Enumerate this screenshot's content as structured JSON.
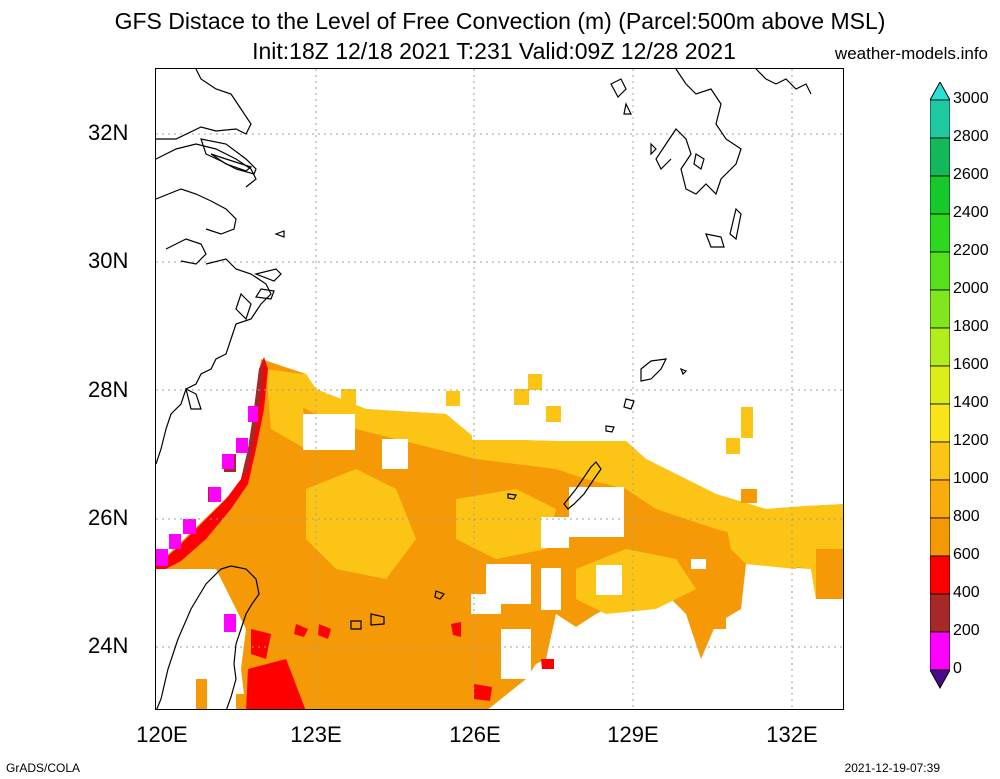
{
  "title": {
    "line1": "GFS Distace to the Level of Free Convection (m) (Parcel:500m above MSL)",
    "line2": "Init:18Z 12/18 2021 T:231 Valid:09Z 12/28 2021",
    "site": "weather-models.info"
  },
  "axes": {
    "lat_labels": [
      "32N",
      "30N",
      "28N",
      "26N",
      "24N"
    ],
    "lon_labels": [
      "120E",
      "123E",
      "126E",
      "129E",
      "132E"
    ]
  },
  "colorbar": {
    "labels": [
      "3000",
      "2800",
      "2600",
      "2400",
      "2200",
      "2000",
      "1800",
      "1600",
      "1400",
      "1200",
      "1000",
      "800",
      "600",
      "400",
      "200",
      "0"
    ],
    "colors": [
      "#27e3d6",
      "#1fc9a0",
      "#12b85a",
      "#16c92a",
      "#2ed81e",
      "#55e01c",
      "#82e61e",
      "#b2ee1e",
      "#dcee1a",
      "#f7e51a",
      "#fcc516",
      "#f9ac0c",
      "#f59a06",
      "#ff0000",
      "#a62828",
      "#ff00ff",
      "#4b0a8a"
    ],
    "legend_colors": {
      "0-200": "#4b0a8a",
      "200-400": "#ff00ff",
      "400-600": "#a62828",
      "600-800": "#ff0000",
      "800-1000": "#f59a06",
      "1000-1200": "#fcc516"
    }
  },
  "footer": {
    "left": "GrADS/COLA",
    "right": "2021-12-19-07:39"
  }
}
